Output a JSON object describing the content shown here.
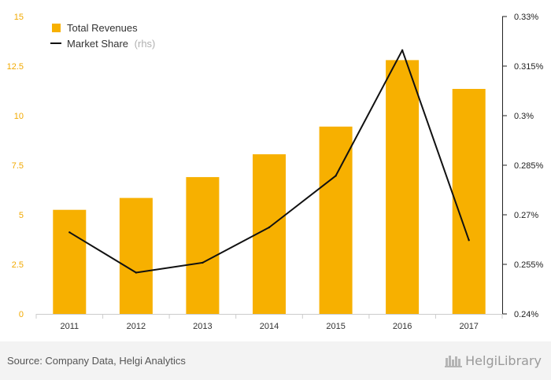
{
  "chart_data": {
    "type": "bar",
    "categories": [
      "2011",
      "2012",
      "2013",
      "2014",
      "2015",
      "2016",
      "2017"
    ],
    "series": [
      {
        "name": "Total Revenues",
        "type": "bar",
        "axis": "left",
        "color": "#f7b000",
        "values": [
          5.25,
          5.85,
          6.9,
          8.05,
          9.45,
          12.8,
          11.35
        ]
      },
      {
        "name": "Market Share",
        "name_suffix": "(rhs)",
        "type": "line",
        "axis": "right",
        "color": "#111111",
        "values": [
          0.2647,
          0.2525,
          0.2555,
          0.2662,
          0.2818,
          0.3198,
          0.2623
        ]
      }
    ],
    "left_axis": {
      "ylim": [
        0,
        15
      ],
      "ticks": [
        0,
        2.5,
        5,
        7.5,
        10,
        12.5,
        15
      ],
      "tick_labels": [
        "0",
        "2.5",
        "5",
        "7.5",
        "10",
        "12.5",
        "15"
      ],
      "color": "#f2a900"
    },
    "right_axis": {
      "ylim": [
        0.24,
        0.33
      ],
      "ticks": [
        0.24,
        0.255,
        0.27,
        0.285,
        0.3,
        0.315,
        0.33
      ],
      "tick_labels": [
        "0.24%",
        "0.255%",
        "0.27%",
        "0.285%",
        "0.3%",
        "0.315%",
        "0.33%"
      ]
    },
    "grid": false,
    "legend_position": "top-left"
  },
  "footer": {
    "source": "Source: Company Data, Helgi Analytics",
    "brand": "HelgiLibrary"
  }
}
